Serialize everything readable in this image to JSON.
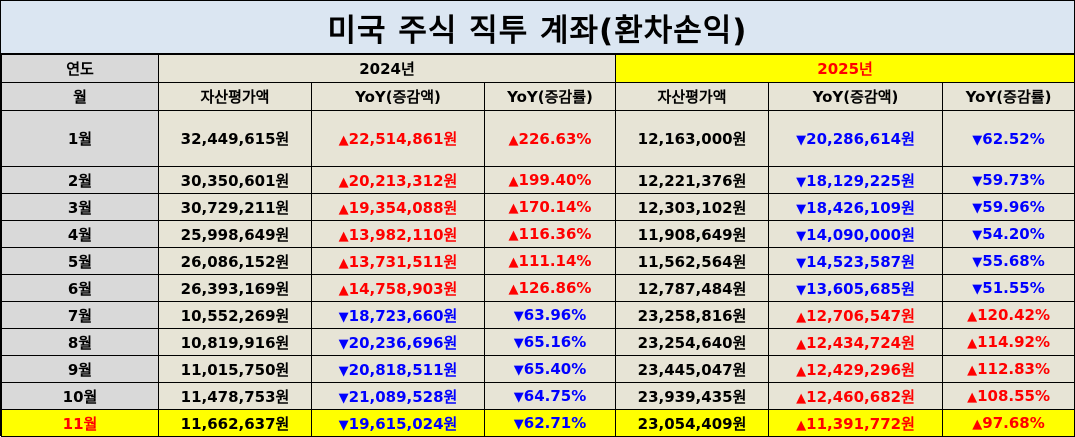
{
  "title": "미국 주식 직투 계좌(환차손익)",
  "header": {
    "year_label": "연도",
    "month_label": "월",
    "year_2024": "2024년",
    "year_2025": "2025년",
    "col_asset": "자산평가액",
    "col_yoy_amount": "YoY(증감액)",
    "col_yoy_rate": "YoY(증감률)"
  },
  "rows": [
    {
      "month": "1월",
      "a24": "32,449,615원",
      "d24": "up",
      "y24": "22,514,861원",
      "r24": "226.63%",
      "a25": "12,163,000원",
      "d25": "down",
      "y25": "20,286,614원",
      "r25": "62.52%"
    },
    {
      "month": "2월",
      "a24": "30,350,601원",
      "d24": "up",
      "y24": "20,213,312원",
      "r24": "199.40%",
      "a25": "12,221,376원",
      "d25": "down",
      "y25": "18,129,225원",
      "r25": "59.73%"
    },
    {
      "month": "3월",
      "a24": "30,729,211원",
      "d24": "up",
      "y24": "19,354,088원",
      "r24": "170.14%",
      "a25": "12,303,102원",
      "d25": "down",
      "y25": "18,426,109원",
      "r25": "59.96%"
    },
    {
      "month": "4월",
      "a24": "25,998,649원",
      "d24": "up",
      "y24": "13,982,110원",
      "r24": "116.36%",
      "a25": "11,908,649원",
      "d25": "down",
      "y25": "14,090,000원",
      "r25": "54.20%"
    },
    {
      "month": "5월",
      "a24": "26,086,152원",
      "d24": "up",
      "y24": "13,731,511원",
      "r24": "111.14%",
      "a25": "11,562,564원",
      "d25": "down",
      "y25": "14,523,587원",
      "r25": "55.68%"
    },
    {
      "month": "6월",
      "a24": "26,393,169원",
      "d24": "up",
      "y24": "14,758,903원",
      "r24": "126.86%",
      "a25": "12,787,484원",
      "d25": "down",
      "y25": "13,605,685원",
      "r25": "51.55%"
    },
    {
      "month": "7월",
      "a24": "10,552,269원",
      "d24": "down",
      "y24": "18,723,660원",
      "r24": "63.96%",
      "a25": "23,258,816원",
      "d25": "up",
      "y25": "12,706,547원",
      "r25": "120.42%"
    },
    {
      "month": "8월",
      "a24": "10,819,916원",
      "d24": "down",
      "y24": "20,236,696원",
      "r24": "65.16%",
      "a25": "23,254,640원",
      "d25": "up",
      "y25": "12,434,724원",
      "r25": "114.92%"
    },
    {
      "month": "9월",
      "a24": "11,015,750원",
      "d24": "down",
      "y24": "20,818,511원",
      "r24": "65.40%",
      "a25": "23,445,047원",
      "d25": "up",
      "y25": "12,429,296원",
      "r25": "112.83%"
    },
    {
      "month": "10월",
      "a24": "11,478,753원",
      "d24": "down",
      "y24": "21,089,528원",
      "r24": "64.75%",
      "a25": "23,939,435원",
      "d25": "up",
      "y25": "12,460,682원",
      "r25": "108.55%"
    },
    {
      "month": "11월",
      "a24": "11,662,637원",
      "d24": "down",
      "y24": "19,615,024원",
      "r24": "62.71%",
      "a25": "23,054,409원",
      "d25": "up",
      "y25": "11,391,772원",
      "r25": "97.68%"
    }
  ],
  "highlight_row": "11월",
  "colors": {
    "up": "#ff0000",
    "down": "#0000ff",
    "highlight": "#ffff00",
    "title_bg": "#dbe6f2"
  },
  "arrows": {
    "up": "▲",
    "down": "▼"
  }
}
